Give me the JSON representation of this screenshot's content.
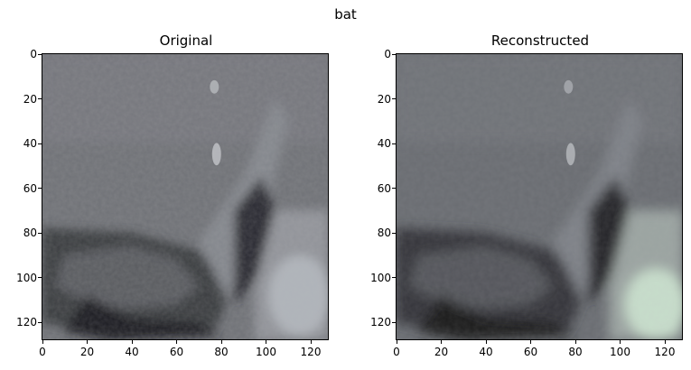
{
  "figure": {
    "title": "bat"
  },
  "panels": [
    {
      "title": "Original",
      "xticks": [
        "0",
        "20",
        "40",
        "60",
        "80",
        "100",
        "120"
      ],
      "yticks": [
        "0",
        "20",
        "40",
        "60",
        "80",
        "100",
        "120"
      ]
    },
    {
      "title": "Reconstructed",
      "xticks": [
        "0",
        "20",
        "40",
        "60",
        "80",
        "100",
        "120"
      ],
      "yticks": [
        "0",
        "20",
        "40",
        "60",
        "80",
        "100",
        "120"
      ]
    }
  ],
  "colors": {
    "rock": "#6f7176",
    "rock_light": "#8a8d93",
    "bat_body": "#7d8086",
    "shadow": "#2a2b2e",
    "lichen": "#cfe7d2"
  }
}
